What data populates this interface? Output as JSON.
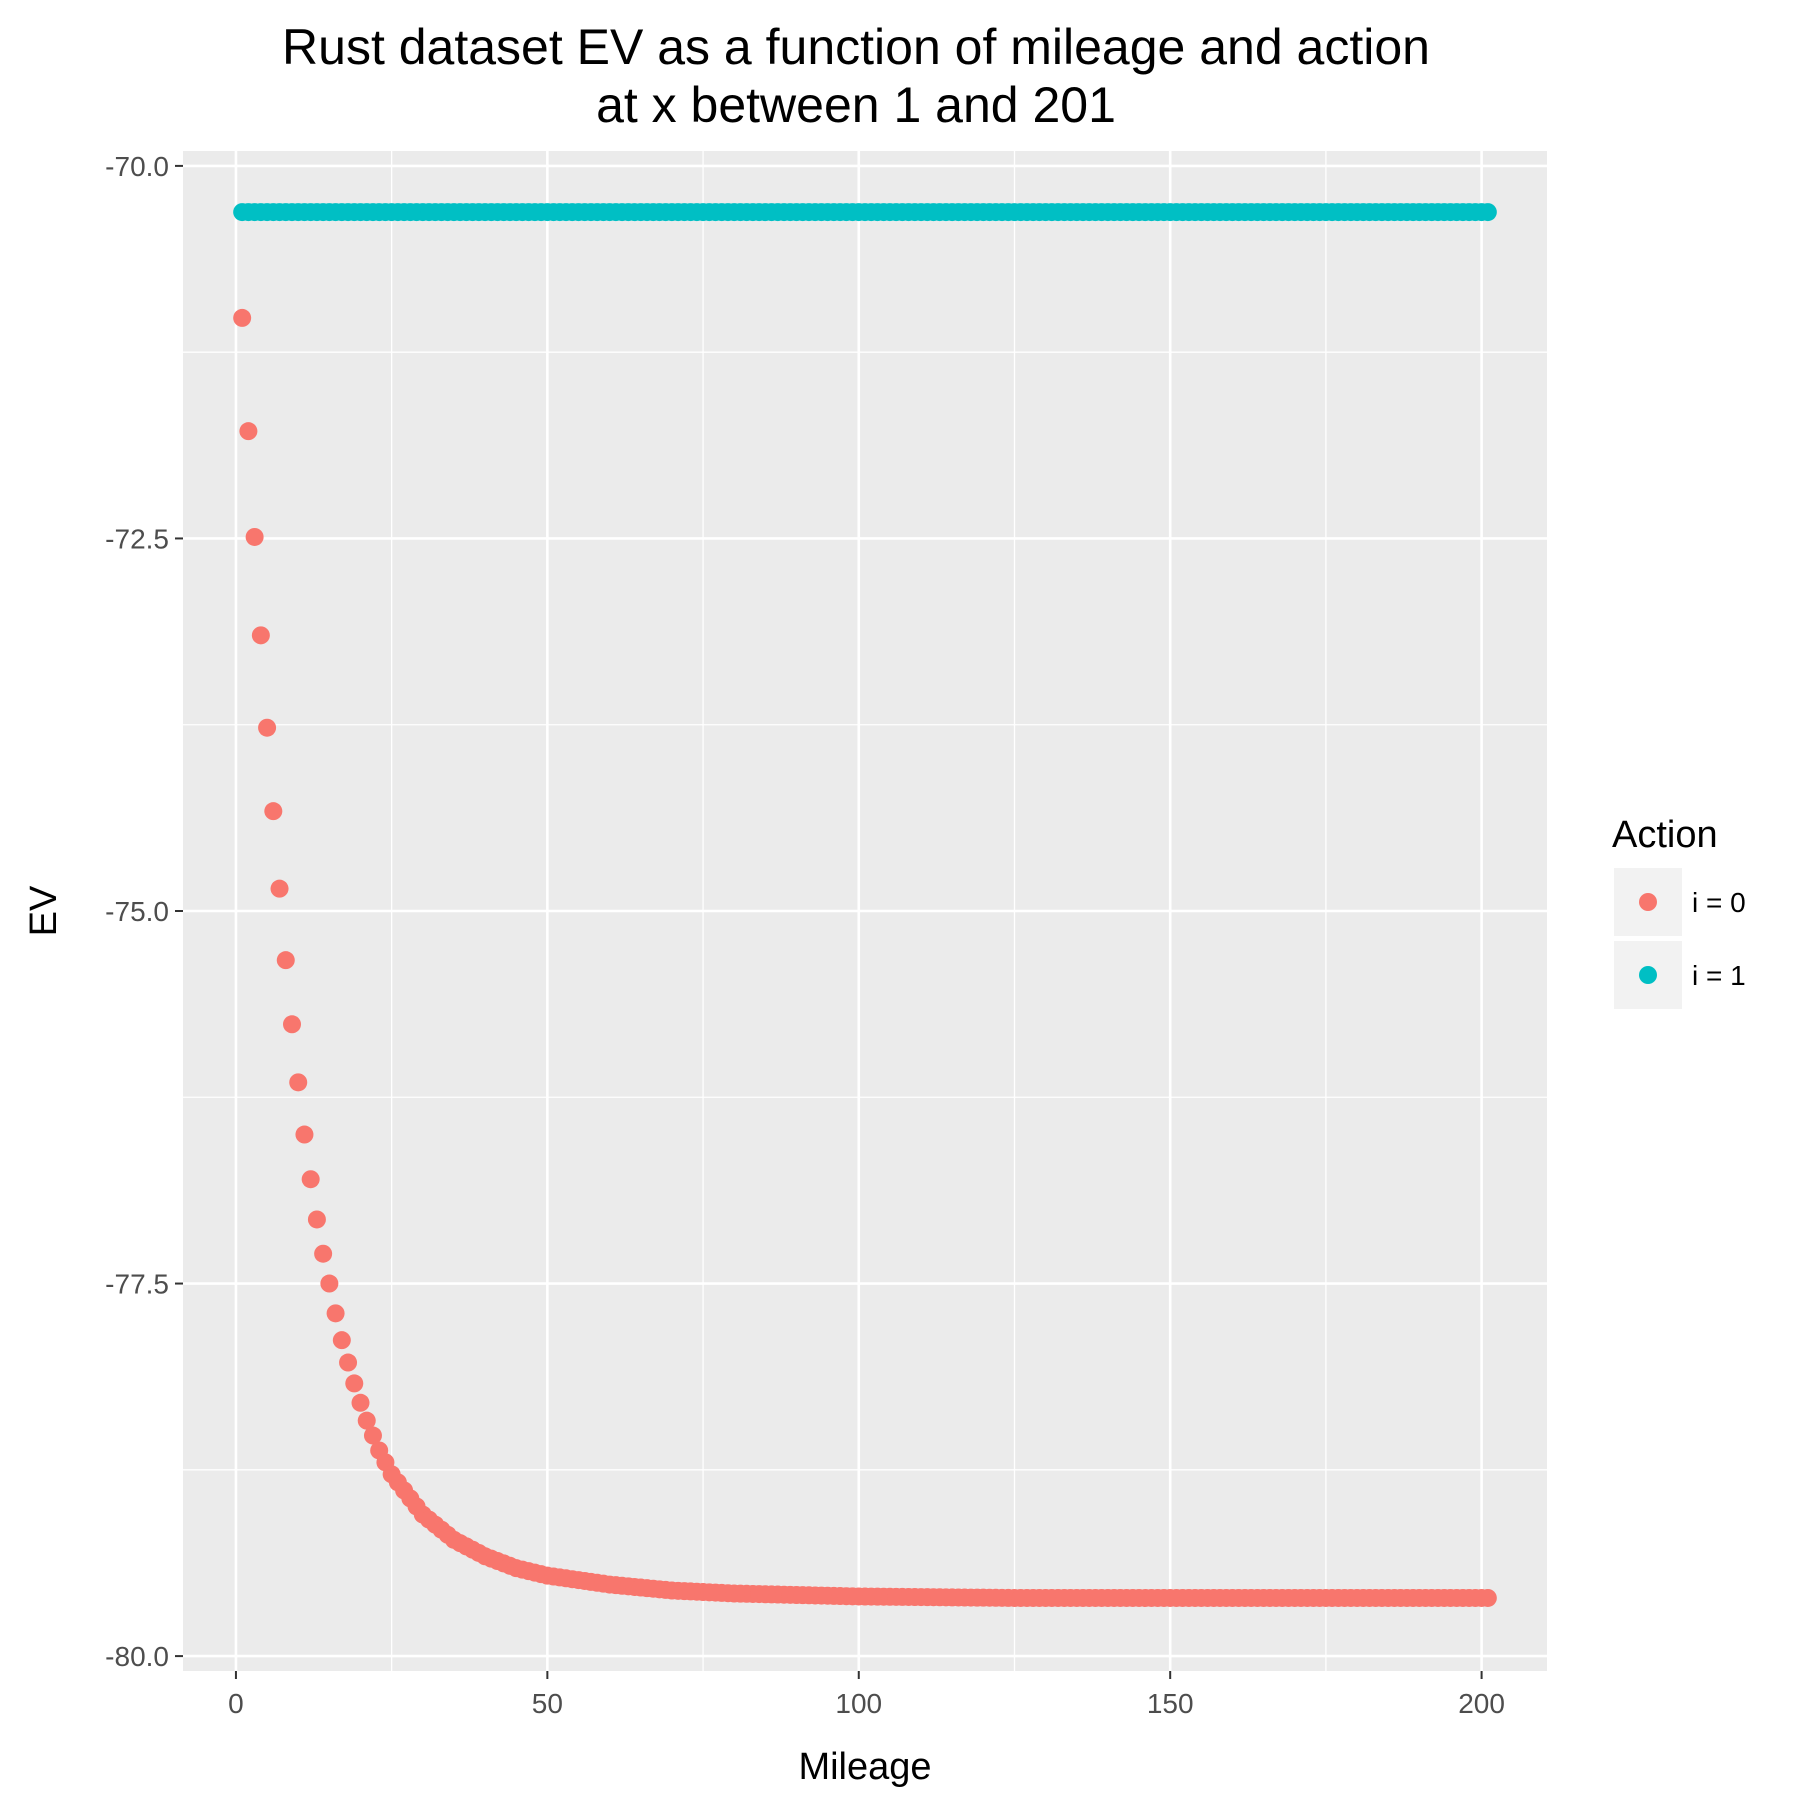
{
  "chart_data": {
    "type": "scatter",
    "title_lines": [
      "Rust dataset EV as a function of mileage and action",
      "at x between 1 and 201"
    ],
    "xlabel": "Mileage",
    "ylabel": "EV",
    "xlim": [
      -8.5,
      210.5
    ],
    "ylim": [
      -80.1,
      -69.9
    ],
    "x_ticks": [
      0,
      50,
      100,
      150,
      200
    ],
    "x_tick_labels": [
      "0",
      "50",
      "100",
      "150",
      "200"
    ],
    "y_ticks": [
      -70,
      -72.5,
      -75,
      -77.5,
      -80
    ],
    "y_tick_labels": [
      "-70.0",
      "-72.5",
      "-75.0",
      "-77.5",
      "-80.0"
    ],
    "grid": true,
    "legend": {
      "title": "Action",
      "position": "right",
      "entries": [
        {
          "label": "i = 0",
          "color": "#F8766D"
        },
        {
          "label": "i = 1",
          "color": "#00BFC4"
        }
      ]
    },
    "x_range": [
      1,
      201
    ],
    "series": [
      {
        "name": "i = 0",
        "color": "#F8766D",
        "x": [
          1,
          2,
          3,
          4,
          5,
          6,
          7,
          8,
          9,
          10,
          11,
          12,
          13,
          14,
          15,
          16,
          17,
          18,
          19,
          20,
          21,
          22,
          23,
          24,
          25,
          30,
          35,
          40,
          45,
          50,
          60,
          70,
          80,
          90,
          100,
          125,
          150,
          175,
          201
        ],
        "y": [
          -71.02,
          -71.78,
          -72.49,
          -73.15,
          -73.77,
          -74.33,
          -74.85,
          -75.33,
          -75.76,
          -76.15,
          -76.5,
          -76.8,
          -77.07,
          -77.3,
          -77.5,
          -77.7,
          -77.88,
          -78.03,
          -78.17,
          -78.3,
          -78.42,
          -78.52,
          -78.62,
          -78.7,
          -78.78,
          -79.05,
          -79.22,
          -79.33,
          -79.41,
          -79.46,
          -79.52,
          -79.56,
          -79.58,
          -79.59,
          -79.6,
          -79.61,
          -79.61,
          -79.61,
          -79.61
        ]
      },
      {
        "name": "i = 1",
        "color": "#00BFC4",
        "x": [
          1,
          201
        ],
        "y": [
          -70.31,
          -70.31
        ]
      }
    ]
  }
}
